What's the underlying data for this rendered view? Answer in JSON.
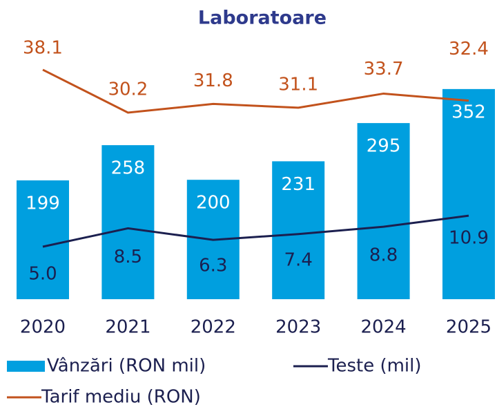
{
  "chart_data": {
    "type": "bar",
    "title": "Laboratoare",
    "categories": [
      "2020",
      "2021",
      "2022",
      "2023",
      "2024",
      "2025"
    ],
    "series": [
      {
        "name": "Vânzări (RON mil)",
        "type": "bar",
        "color": "#009fdf",
        "values": [
          199,
          258,
          200,
          231,
          295,
          352
        ]
      },
      {
        "name": "Teste (mil)",
        "type": "line",
        "color": "#1b1f4f",
        "values": [
          5.0,
          8.5,
          6.3,
          7.4,
          8.8,
          10.9
        ],
        "value_labels": [
          "5.0",
          "8.5",
          "6.3",
          "7.4",
          "8.8",
          "10.9"
        ]
      },
      {
        "name": "Tarif mediu (RON)",
        "type": "line",
        "color": "#c2521c",
        "values": [
          38.1,
          30.2,
          31.8,
          31.1,
          33.7,
          32.4
        ],
        "value_labels": [
          "38.1",
          "30.2",
          "31.8",
          "31.1",
          "33.7",
          "32.4"
        ]
      }
    ]
  }
}
